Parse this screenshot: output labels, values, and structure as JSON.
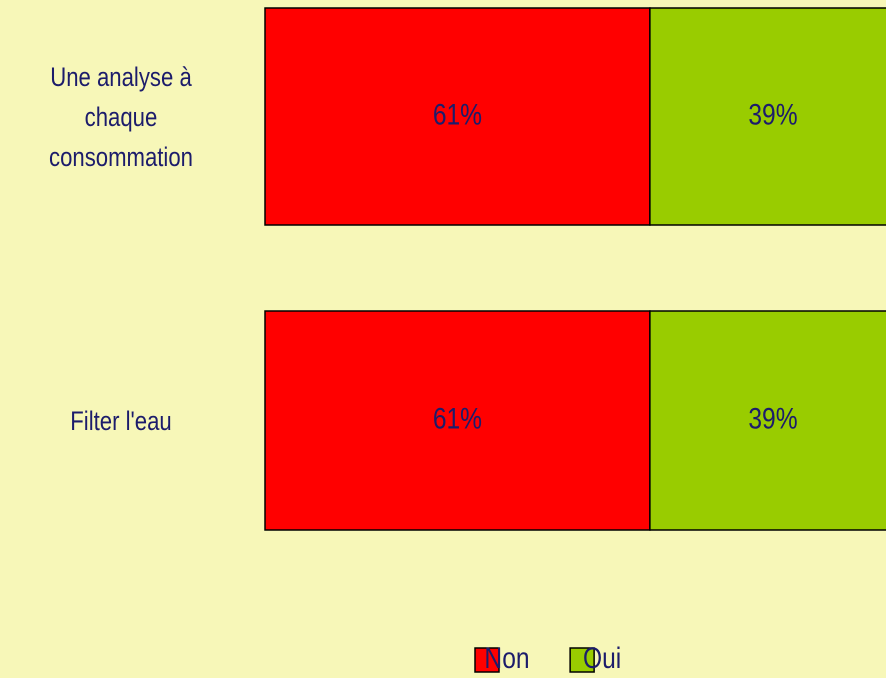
{
  "chart_data": {
    "type": "bar",
    "orientation": "horizontal",
    "stacked": true,
    "categories": [
      "Une analyse à chaque consommation",
      "Filter l'eau"
    ],
    "series": [
      {
        "name": "Non",
        "color": "#ff0000",
        "values": [
          61,
          61
        ],
        "value_labels": [
          "61%",
          "61%"
        ]
      },
      {
        "name": "Oui",
        "color": "#99cc00",
        "values": [
          39,
          39
        ],
        "value_labels": [
          "39%",
          "39%"
        ]
      }
    ],
    "legend": "bottom"
  }
}
